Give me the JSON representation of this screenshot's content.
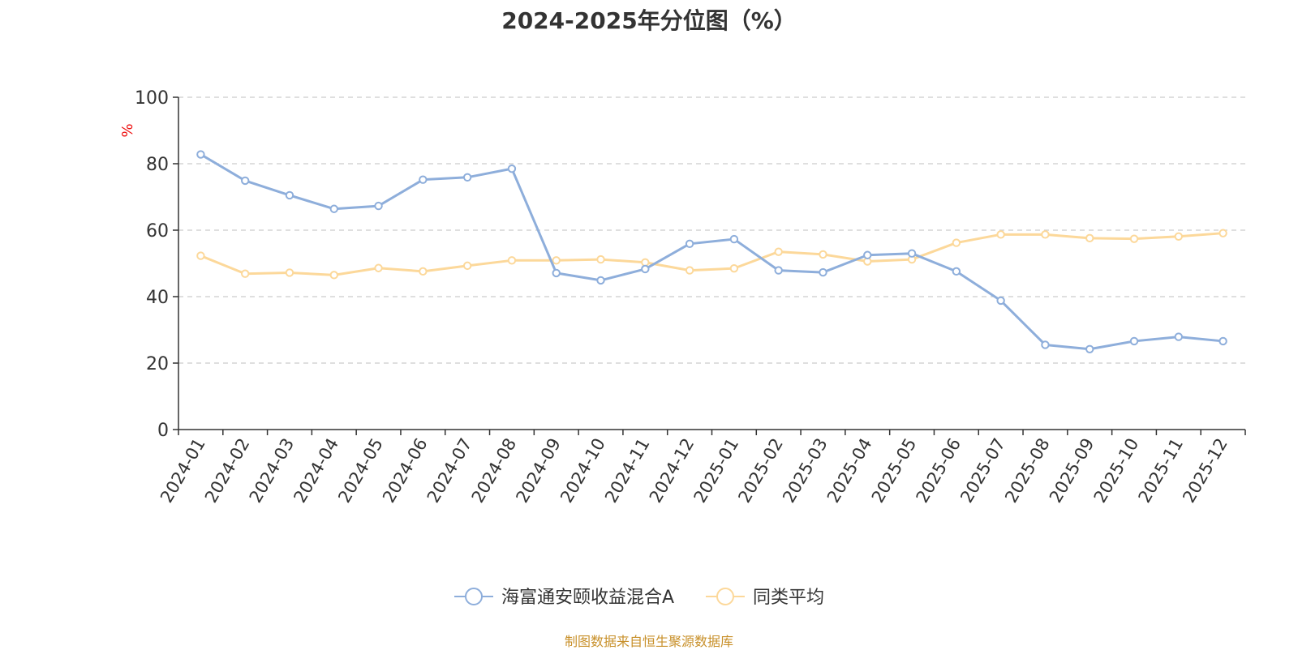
{
  "chart_data": {
    "type": "line",
    "title": "2024-2025年分位图（%）",
    "ylabel": "%",
    "ylim": [
      0,
      100
    ],
    "yticks": [
      0,
      20,
      40,
      60,
      80,
      100
    ],
    "grid": true,
    "legend_position": "bottom",
    "categories": [
      "2024-01",
      "2024-02",
      "2024-03",
      "2024-04",
      "2024-05",
      "2024-06",
      "2024-07",
      "2024-08",
      "2024-09",
      "2024-10",
      "2024-11",
      "2024-12",
      "2025-01",
      "2025-02",
      "2025-03",
      "2025-04",
      "2025-05",
      "2025-06",
      "2025-07",
      "2025-08",
      "2025-09",
      "2025-10",
      "2025-11",
      "2025-12"
    ],
    "series": [
      {
        "name": "海富通安颐收益混合A",
        "color": "#8eaedb",
        "values": [
          82.8,
          74.9,
          70.5,
          66.4,
          67.3,
          75.2,
          75.9,
          78.5,
          47.1,
          44.9,
          48.3,
          55.9,
          57.3,
          47.9,
          47.3,
          52.5,
          53.0,
          47.6,
          38.8,
          25.5,
          24.2,
          26.6,
          27.9,
          26.6
        ]
      },
      {
        "name": "同类平均",
        "color": "#fcd89a",
        "values": [
          52.3,
          46.9,
          47.2,
          46.5,
          48.6,
          47.6,
          49.3,
          50.9,
          50.9,
          51.2,
          50.3,
          47.9,
          48.5,
          53.5,
          52.7,
          50.6,
          51.2,
          56.2,
          58.7,
          58.7,
          57.6,
          57.4,
          58.1,
          59.1
        ]
      }
    ]
  },
  "source_text": "制图数据来自恒生聚源数据库"
}
